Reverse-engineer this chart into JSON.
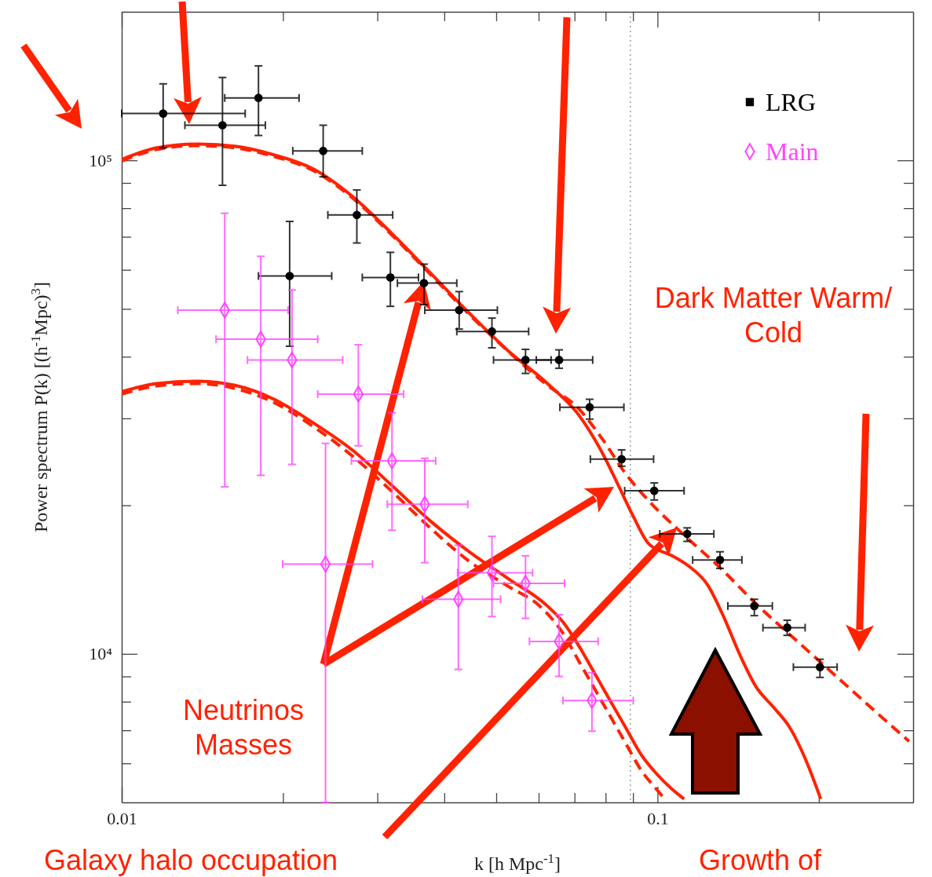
{
  "chart_data": {
    "type": "scatter",
    "xlabel": "k [h Mpc$^{-1}$]",
    "ylabel": "Power spectrum P(k) [(h$^{-1}$Mpc)$^{3}$]",
    "log": "xy",
    "legend": "top right",
    "xlim": [
      0.01,
      0.3
    ],
    "xticks": [
      0.01,
      {
        "value": 0.02,
        "label": null
      },
      {
        "value": 0.03,
        "label": null
      },
      {
        "value": 0.04,
        "label": null
      },
      {
        "value": 0.05,
        "label": null
      },
      {
        "value": 0.06,
        "label": null
      },
      {
        "value": 0.07,
        "label": null
      },
      {
        "value": 0.08,
        "label": null
      },
      {
        "value": 0.09,
        "label": null
      },
      0.1,
      {
        "value": 0.2,
        "label": null
      }
    ],
    "ylim": [
      5000,
      200000
    ],
    "yticks": [
      {
        "value": 6000,
        "label": null
      },
      {
        "value": 7000,
        "label": null
      },
      {
        "value": 8000,
        "label": null
      },
      {
        "value": 9000,
        "label": null
      },
      {
        "value": 10000,
        "label": "10⁴"
      },
      {
        "value": 20000,
        "label": null
      },
      {
        "value": 30000,
        "label": null
      },
      {
        "value": 40000,
        "label": null
      },
      {
        "value": 50000,
        "label": null
      },
      {
        "value": 60000,
        "label": null
      },
      {
        "value": 70000,
        "label": null
      },
      {
        "value": 80000,
        "label": null
      },
      {
        "value": 90000,
        "label": null
      },
      {
        "value": 100000,
        "label": "10⁵"
      }
    ],
    "ref_lines": [
      {
        "axis": "x",
        "value": 0.089,
        "color": "#888888",
        "line_style": "dotted"
      }
    ],
    "annotations": [
      "Dark Matter Warm/\nCold",
      "Neutrinos\nMasses",
      "Galaxy halo occupation",
      "Growth of"
    ],
    "series": [
      {
        "type": "line",
        "color": "#ff2200",
        "line_style": "solid",
        "x": [
          0.01,
          0.01163,
          0.01376,
          0.01627,
          0.01924,
          0.02276,
          0.02692,
          0.03184,
          0.03765,
          0.04454,
          0.05267,
          0.06231,
          0.07125,
          0.0788,
          0.08427,
          0.0901,
          0.09638,
          0.1066,
          0.114,
          0.124,
          0.1326,
          0.1422,
          0.1527,
          0.1649,
          0.1764,
          0.1886,
          0.2017
        ],
        "values": [
          100400,
          106000,
          107900,
          106800,
          102600,
          96100,
          84600,
          71300,
          59200,
          49000,
          41100,
          35300,
          30500,
          25600,
          22100,
          19000,
          16700,
          15800,
          15100,
          13800,
          11950,
          10000,
          8580,
          7780,
          7100,
          6140,
          5080
        ]
      },
      {
        "type": "line",
        "color": "#ff2200",
        "line_style": "dashed",
        "x": [
          0.01,
          0.01163,
          0.01376,
          0.01627,
          0.01924,
          0.02276,
          0.02692,
          0.03184,
          0.03765,
          0.04454,
          0.05267,
          0.06231,
          0.07125,
          0.0788,
          0.08714,
          0.09638,
          0.1102,
          0.1304,
          0.1542,
          0.1824,
          0.2157,
          0.2551,
          0.2948
        ],
        "values": [
          99700,
          105200,
          107100,
          106000,
          101800,
          95400,
          84000,
          70800,
          58800,
          48700,
          41000,
          35000,
          31400,
          27300,
          23200,
          20400,
          17700,
          15000,
          12500,
          10600,
          9000,
          7640,
          6650
        ]
      },
      {
        "type": "line",
        "color": "#ff2200",
        "line_style": "solid",
        "x": [
          0.01,
          0.01163,
          0.01376,
          0.01627,
          0.01924,
          0.02276,
          0.02692,
          0.03184,
          0.03765,
          0.04454,
          0.05267,
          0.06231,
          0.06662,
          0.07125,
          0.0762,
          0.08149,
          0.08714,
          0.09321,
          0.09966,
          0.1066,
          0.1121
        ],
        "values": [
          34000,
          35300,
          35700,
          35000,
          32800,
          29400,
          25900,
          22000,
          18600,
          16100,
          14200,
          12500,
          11600,
          10400,
          9160,
          8060,
          7100,
          6250,
          5710,
          5310,
          5080
        ]
      },
      {
        "type": "line",
        "color": "#ff2200",
        "line_style": "dashed",
        "x": [
          0.01,
          0.01163,
          0.01376,
          0.01627,
          0.01924,
          0.02276,
          0.02692,
          0.03184,
          0.03765,
          0.04454,
          0.05267,
          0.06025,
          0.06662,
          0.07125,
          0.0762,
          0.08149,
          0.08714,
          0.09321,
          0.09966,
          0.1031
        ],
        "values": [
          33600,
          34900,
          35300,
          34500,
          32300,
          28900,
          25200,
          21400,
          18000,
          15400,
          13700,
          12500,
          11000,
          9680,
          8520,
          7500,
          6600,
          5810,
          5310,
          5080
        ]
      },
      {
        "name": "LRG",
        "color": "#000000",
        "marker": "circle",
        "x": [
          0.01195,
          0.01542,
          0.018,
          0.02377,
          0.02747,
          0.02058,
          0.03173,
          0.03665,
          0.04264,
          0.04909,
          0.05671,
          0.06551,
          0.0747,
          0.0857,
          0.0986,
          0.1136,
          0.1308,
          0.1516,
          0.1746,
          0.201
        ],
        "values": [
          124400,
          117800,
          133800,
          104500,
          77500,
          58300,
          57900,
          56400,
          49700,
          45000,
          39400,
          39400,
          31600,
          24800,
          21400,
          17500,
          15500,
          12500,
          11300,
          9400
        ],
        "errors": [
          [
            106000,
            142900
          ],
          [
            89000,
            147200
          ],
          [
            112300,
            155400
          ],
          [
            92600,
            117800
          ],
          [
            68000,
            87100
          ],
          [
            42000,
            75200
          ],
          [
            50600,
            65100
          ],
          [
            51000,
            61600
          ],
          [
            45500,
            54200
          ],
          [
            41700,
            47900
          ],
          [
            37000,
            41400
          ],
          [
            37900,
            41300
          ],
          [
            29900,
            32800
          ],
          [
            24000,
            25900
          ],
          [
            20500,
            22200
          ],
          [
            16900,
            18000
          ],
          [
            14900,
            16100
          ],
          [
            11950,
            12900
          ],
          [
            10900,
            11700
          ],
          [
            8960,
            9750
          ]
        ],
        "xerrors": [
          [
            0.01,
            0.017
          ],
          [
            0.01312,
            0.01854
          ],
          [
            0.01557,
            0.02143
          ],
          [
            0.02086,
            0.02812
          ],
          [
            0.02425,
            0.03205
          ],
          [
            0.018,
            0.02466
          ],
          [
            0.02812,
            0.0358
          ],
          [
            0.0327,
            0.04221
          ],
          [
            0.03678,
            0.05025
          ],
          [
            0.04221,
            0.05748
          ],
          [
            0.04942,
            0.0633
          ],
          [
            0.0594,
            0.07569
          ],
          [
            0.06573,
            0.08655
          ],
          [
            0.07493,
            0.09834
          ],
          [
            0.08685,
            0.1121
          ],
          [
            0.101,
            0.1274
          ],
          [
            0.1163,
            0.1437
          ],
          [
            0.1353,
            0.1638
          ],
          [
            0.1573,
            0.1886
          ],
          [
            0.1793,
            0.2164
          ]
        ]
      },
      {
        "name": "Main",
        "color": "#ff44ff",
        "marker": "diamond",
        "x": [
          0.01557,
          0.01818,
          0.02079,
          0.02765,
          0.02401,
          0.03195,
          0.03678,
          0.04249,
          0.04909,
          0.05671,
          0.06551,
          0.07545
        ],
        "values": [
          49700,
          43400,
          39400,
          33600,
          15200,
          24600,
          20100,
          12900,
          14600,
          13900,
          10600,
          8040
        ],
        "errors": [
          [
            21800,
            78100
          ],
          [
            23000,
            63900
          ],
          [
            24200,
            54600
          ],
          [
            26400,
            42300
          ],
          [
            5000,
            26700
          ],
          [
            17800,
            30800
          ],
          [
            15300,
            24900
          ],
          [
            9300,
            16600
          ],
          [
            11900,
            17300
          ],
          [
            11800,
            15800
          ],
          [
            9000,
            12000
          ],
          [
            6970,
            9160
          ]
        ],
        "xerrors": [
          [
            0.01273,
            0.02044
          ],
          [
            0.015,
            0.02322
          ],
          [
            0.01717,
            0.02585
          ],
          [
            0.02322,
            0.03359
          ],
          [
            0.01997,
            0.02938
          ],
          [
            0.02683,
            0.03855
          ],
          [
            0.03131,
            0.04424
          ],
          [
            0.03641,
            0.05093
          ],
          [
            0.04235,
            0.05846
          ],
          [
            0.04942,
            0.06707
          ],
          [
            0.05767,
            0.07749
          ],
          [
            0.06662,
            0.0901
          ]
        ]
      }
    ]
  }
}
